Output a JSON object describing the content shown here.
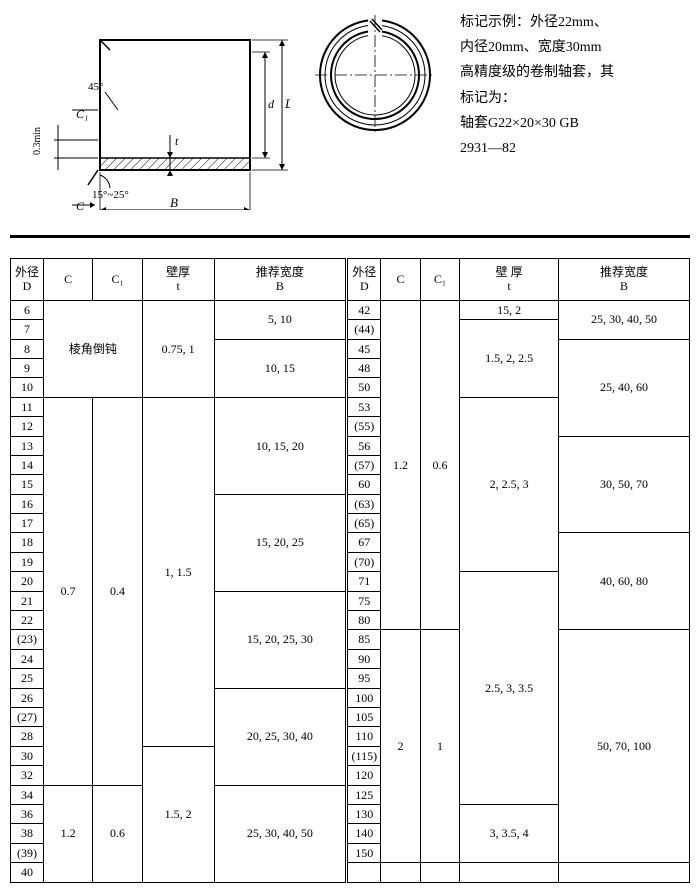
{
  "note": {
    "l1": "标记示例：外径22mm、",
    "l2": "内径20mm、宽度30mm",
    "l3": "高精度级的卷制轴套，其",
    "l4": "标记为：",
    "l5": "轴套G22×20×30 GB",
    "l6": "2931—82"
  },
  "diagram": {
    "angle1": "45°",
    "c1": "C₁",
    "tol": "0.3min",
    "angle2": "15°~25°",
    "c": "C",
    "B": "B",
    "t": "t",
    "d": "d",
    "D": "D"
  },
  "headers": {
    "D": "外径\nD",
    "C": "C",
    "C1": "C₁",
    "t": "壁厚\nt",
    "B": "推荐宽度\nB",
    "t2": "壁 厚\nt"
  },
  "left": {
    "d": [
      "6",
      "7",
      "8",
      "9",
      "10",
      "11",
      "12",
      "13",
      "14",
      "15",
      "16",
      "17",
      "18",
      "19",
      "20",
      "21",
      "22",
      "(23)",
      "24",
      "25",
      "26",
      "(27)",
      "28",
      "30",
      "32",
      "34",
      "36",
      "38",
      "(39)",
      "40"
    ],
    "groups": [
      {
        "span": 5,
        "c": "棱角倒钝",
        "c1": ""
      },
      {
        "span": 20,
        "c": "0.7",
        "c1": "0.4"
      },
      {
        "span": 5,
        "c": "1.2",
        "c1": "0.6"
      }
    ],
    "t": [
      {
        "span": 5,
        "v": "0.75, 1"
      },
      {
        "span": 18,
        "v": "1, 1.5"
      },
      {
        "span": 7,
        "v": "1.5, 2"
      }
    ],
    "b": [
      {
        "span": 2,
        "v": "5, 10"
      },
      {
        "span": 3,
        "v": "10, 15"
      },
      {
        "span": 5,
        "v": "10, 15, 20"
      },
      {
        "span": 5,
        "v": "15, 20, 25"
      },
      {
        "span": 5,
        "v": "15, 20, 25, 30"
      },
      {
        "span": 5,
        "v": "20, 25, 30, 40"
      },
      {
        "span": 5,
        "v": "25, 30, 40, 50"
      }
    ]
  },
  "right": {
    "d": [
      "42",
      "(44)",
      "45",
      "48",
      "50",
      "53",
      "(55)",
      "56",
      "(57)",
      "60",
      "(63)",
      "(65)",
      "67",
      "(70)",
      "71",
      "75",
      "80",
      "85",
      "90",
      "95",
      "100",
      "105",
      "110",
      "(115)",
      "120",
      "125",
      "130",
      "140",
      "150"
    ],
    "groups": [
      {
        "span": 17,
        "c": "1.2",
        "c1": "0.6"
      },
      {
        "span": 12,
        "c": "2",
        "c1": "1"
      }
    ],
    "t": [
      {
        "span": 1,
        "v": "15, 2"
      },
      {
        "span": 4,
        "v": "1.5, 2, 2.5"
      },
      {
        "span": 9,
        "v": "2, 2.5, 3"
      },
      {
        "span": 12,
        "v": "2.5, 3, 3.5"
      },
      {
        "span": 3,
        "v": "3, 3.5, 4"
      }
    ],
    "b": [
      {
        "span": 2,
        "v": "25, 30, 40, 50"
      },
      {
        "span": 5,
        "v": "25, 40, 60"
      },
      {
        "span": 5,
        "v": "30, 50, 70"
      },
      {
        "span": 5,
        "v": "40, 60, 80"
      },
      {
        "span": 12,
        "v": "50, 70, 100"
      }
    ]
  }
}
